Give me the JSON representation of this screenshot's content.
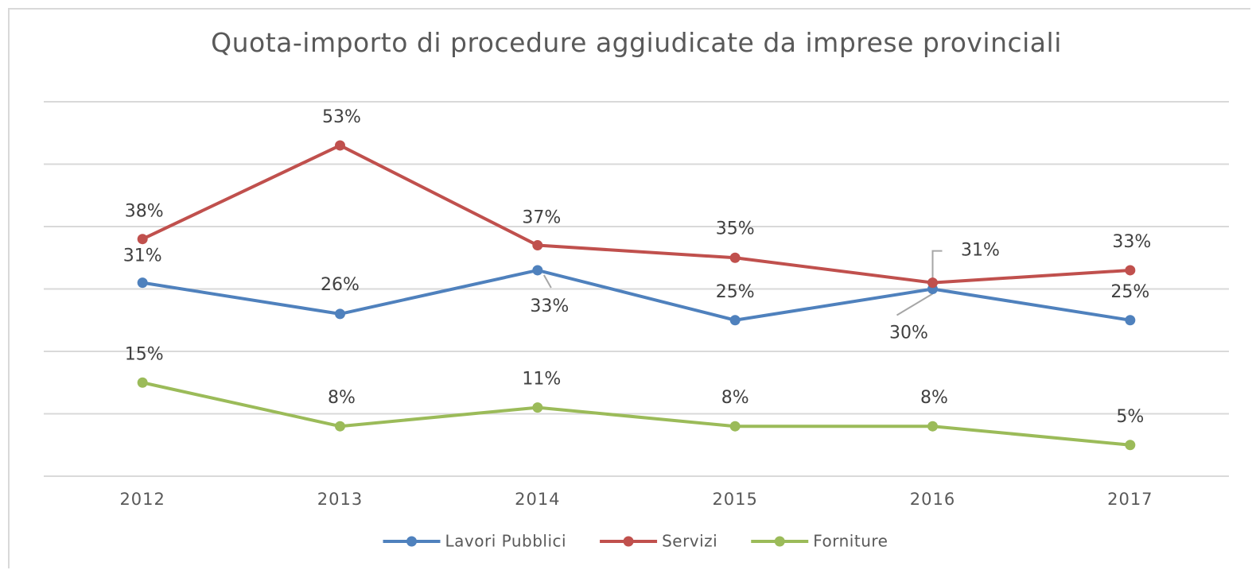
{
  "chart_data": {
    "type": "line",
    "title": "Quota-importo di procedure aggiudicate da imprese provinciali",
    "categories": [
      "2012",
      "2013",
      "2014",
      "2015",
      "2016",
      "2017"
    ],
    "ylim": [
      0,
      60
    ],
    "yticks": [
      0,
      10,
      20,
      30,
      40,
      50,
      60
    ],
    "grid": true,
    "legend": "bottom",
    "series": [
      {
        "name": "Lavori Pubblici",
        "color": "#4f81bd",
        "values": [
          31,
          26,
          33,
          25,
          30,
          25
        ],
        "value_labels": [
          "31%",
          "26%",
          "33%",
          "25%",
          "30%",
          "25%"
        ]
      },
      {
        "name": "Servizi",
        "color": "#c0504d",
        "values": [
          38,
          53,
          37,
          35,
          31,
          33
        ],
        "value_labels": [
          "38%",
          "53%",
          "37%",
          "35%",
          "31%",
          "33%"
        ]
      },
      {
        "name": "Forniture",
        "color": "#9bbb59",
        "values": [
          15,
          8,
          11,
          8,
          8,
          5
        ],
        "value_labels": [
          "15%",
          "8%",
          "11%",
          "8%",
          "8%",
          "5%"
        ]
      }
    ]
  }
}
